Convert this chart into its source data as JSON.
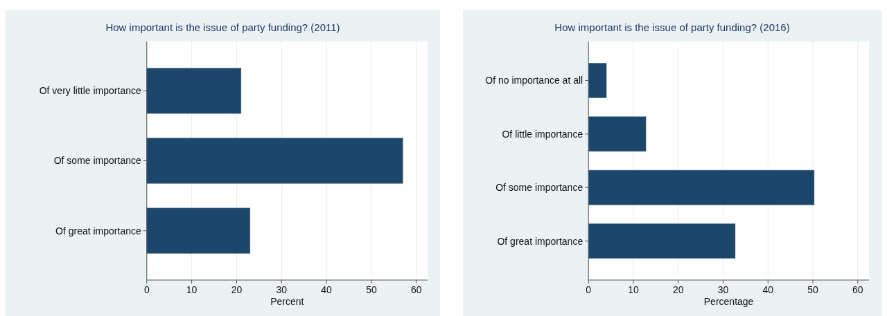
{
  "chart_data": [
    {
      "type": "bar",
      "orientation": "horizontal",
      "title": "How important is the issue of party funding? (2011)",
      "xlabel": "Percent",
      "categories": [
        "Of very little importance",
        "Of some importance",
        "Of great importance"
      ],
      "values": [
        21,
        57,
        23
      ],
      "color": "#1c466c",
      "xlim": [
        0,
        62.5
      ],
      "xticks": [
        0,
        10,
        20,
        30,
        40,
        50,
        60
      ],
      "grid": "x"
    },
    {
      "type": "bar",
      "orientation": "horizontal",
      "title": "How important is the issue of party funding? (2016)",
      "xlabel": "Percentage",
      "categories": [
        "Of no importance at all",
        "Of little importance",
        "Of some importance",
        "Of great importance"
      ],
      "values": [
        4,
        12.8,
        50.3,
        32.7
      ],
      "color": "#1c466c",
      "xlim": [
        0,
        62.5
      ],
      "xticks": [
        0,
        10,
        20,
        30,
        40,
        50,
        60
      ],
      "grid": "x"
    }
  ]
}
